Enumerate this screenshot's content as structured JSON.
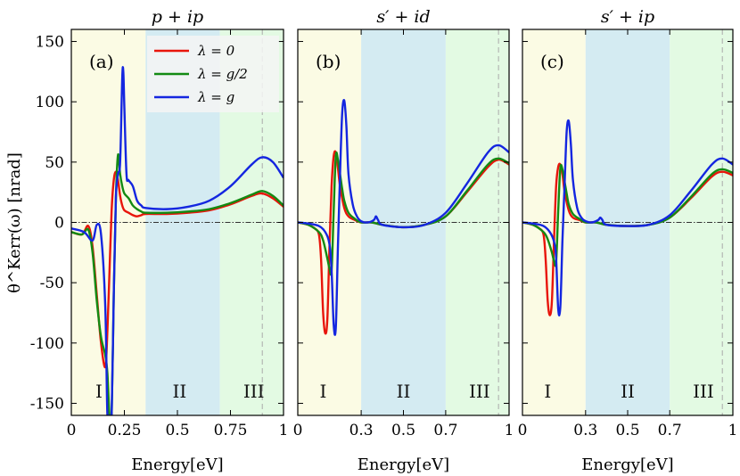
{
  "chart_data": {
    "type": "line",
    "ylabel": "θ^Kerr(ω) [nrad]",
    "ylim": [
      -160,
      160
    ],
    "yticks": [
      -150,
      -100,
      -50,
      0,
      50,
      100,
      150
    ],
    "ytick_labels": [
      "-150",
      "-100",
      "-50",
      "0",
      "50",
      "100",
      "150"
    ],
    "legend": {
      "placement": "top-right of panel (a)",
      "entries": [
        {
          "label": "λ = 0",
          "color": "#e8150b"
        },
        {
          "label": "λ = g/2",
          "color": "#138a13"
        },
        {
          "label": "λ = g",
          "color": "#1426e0"
        }
      ]
    },
    "panels": [
      {
        "letter": "(a)",
        "title": "p + ip",
        "xlabel": "Energy[eV]",
        "xlim": [
          0,
          1
        ],
        "xticks": [
          0,
          0.25,
          0.5,
          0.75,
          1
        ],
        "xtick_labels": [
          "0",
          "0.25",
          "0.5",
          "0.75",
          "1"
        ],
        "regions": [
          {
            "label": "I",
            "from": 0,
            "to": 0.35,
            "color": "#fbfbe4"
          },
          {
            "label": "II",
            "from": 0.35,
            "to": 0.7,
            "color": "#d4ebf2"
          },
          {
            "label": "III",
            "from": 0.7,
            "to": 1,
            "color": "#e3fae3"
          }
        ],
        "dashed_x": 0.9,
        "series": [
          {
            "name": "λ = 0",
            "color": "#e8150b",
            "x": [
              0,
              0.05,
              0.08,
              0.1,
              0.12,
              0.14,
              0.16,
              0.17,
              0.18,
              0.19,
              0.2,
              0.21,
              0.22,
              0.23,
              0.24,
              0.25,
              0.27,
              0.29,
              0.31,
              0.33,
              0.35,
              0.45,
              0.55,
              0.65,
              0.75,
              0.85,
              0.9,
              0.95,
              1.0
            ],
            "y": [
              -8,
              -10,
              -3,
              -20,
              -60,
              -100,
              -120,
              -90,
              -40,
              10,
              35,
              42,
              35,
              22,
              14,
              10,
              8,
              6,
              5,
              6,
              7,
              7,
              8,
              10,
              15,
              22,
              24,
              20,
              13
            ]
          },
          {
            "name": "λ = g/2",
            "color": "#138a13",
            "x": [
              0,
              0.05,
              0.08,
              0.1,
              0.12,
              0.14,
              0.16,
              0.17,
              0.18,
              0.19,
              0.2,
              0.21,
              0.22,
              0.23,
              0.24,
              0.25,
              0.27,
              0.29,
              0.31,
              0.33,
              0.35,
              0.45,
              0.55,
              0.65,
              0.75,
              0.85,
              0.9,
              0.95,
              1.0
            ],
            "y": [
              -8,
              -10,
              -6,
              -25,
              -65,
              -95,
              -110,
              -125,
              -160,
              -160,
              -60,
              20,
              56,
              40,
              30,
              24,
              20,
              14,
              11,
              9,
              8,
              8,
              9,
              11,
              16,
              23,
              26,
              22,
              14
            ]
          },
          {
            "name": "λ = g",
            "color": "#1426e0",
            "x": [
              0,
              0.06,
              0.1,
              0.12,
              0.14,
              0.16,
              0.17,
              0.18,
              0.19,
              0.2,
              0.21,
              0.22,
              0.23,
              0.24,
              0.245,
              0.25,
              0.26,
              0.27,
              0.29,
              0.31,
              0.33,
              0.35,
              0.45,
              0.55,
              0.65,
              0.75,
              0.85,
              0.9,
              0.95,
              1.0
            ],
            "y": [
              -5,
              -8,
              -15,
              -2,
              -10,
              -70,
              -160,
              -160,
              -160,
              -60,
              20,
              40,
              50,
              120,
              125,
              95,
              40,
              35,
              30,
              18,
              14,
              12,
              11,
              13,
              18,
              30,
              48,
              54,
              50,
              37
            ]
          }
        ]
      },
      {
        "letter": "(b)",
        "title": "s′ + id",
        "xlabel": "Energy[eV]",
        "xlim": [
          0,
          1
        ],
        "xticks": [
          0,
          0.3,
          0.5,
          0.7,
          1
        ],
        "xtick_labels": [
          "0",
          "0.3",
          "0.5",
          "0.7",
          "1"
        ],
        "regions": [
          {
            "label": "I",
            "from": 0,
            "to": 0.3,
            "color": "#fbfbe4"
          },
          {
            "label": "II",
            "from": 0.3,
            "to": 0.7,
            "color": "#d4ebf2"
          },
          {
            "label": "III",
            "from": 0.7,
            "to": 1,
            "color": "#e3fae3"
          }
        ],
        "dashed_x": 0.95,
        "series": [
          {
            "name": "λ = 0",
            "color": "#e8150b",
            "x": [
              0,
              0.05,
              0.08,
              0.1,
              0.11,
              0.12,
              0.13,
              0.14,
              0.15,
              0.16,
              0.17,
              0.18,
              0.19,
              0.2,
              0.22,
              0.24,
              0.27,
              0.3,
              0.35,
              0.4,
              0.5,
              0.6,
              0.7,
              0.8,
              0.9,
              0.95,
              1.0
            ],
            "y": [
              0,
              -2,
              -5,
              -10,
              -30,
              -75,
              -92,
              -80,
              -20,
              30,
              55,
              58,
              45,
              30,
              12,
              5,
              2,
              0,
              0,
              -2,
              -4,
              -2,
              5,
              25,
              46,
              52,
              48
            ]
          },
          {
            "name": "λ = g/2",
            "color": "#138a13",
            "x": [
              0,
              0.05,
              0.1,
              0.12,
              0.14,
              0.15,
              0.16,
              0.17,
              0.18,
              0.19,
              0.2,
              0.21,
              0.22,
              0.24,
              0.27,
              0.3,
              0.35,
              0.4,
              0.5,
              0.6,
              0.7,
              0.8,
              0.9,
              0.95,
              1.0
            ],
            "y": [
              0,
              -2,
              -8,
              -15,
              -30,
              -38,
              -40,
              10,
              55,
              52,
              40,
              28,
              18,
              8,
              3,
              0,
              0,
              -2,
              -4,
              -2,
              5,
              26,
              48,
              53,
              49
            ]
          },
          {
            "name": "λ = g",
            "color": "#1426e0",
            "x": [
              0,
              0.05,
              0.1,
              0.13,
              0.15,
              0.16,
              0.17,
              0.18,
              0.19,
              0.2,
              0.21,
              0.22,
              0.23,
              0.24,
              0.26,
              0.28,
              0.3,
              0.33,
              0.36,
              0.37,
              0.38,
              0.4,
              0.5,
              0.6,
              0.7,
              0.8,
              0.9,
              0.95,
              1.0
            ],
            "y": [
              0,
              -1,
              -3,
              -8,
              -18,
              -40,
              -85,
              -87,
              -20,
              40,
              90,
              101,
              80,
              40,
              15,
              5,
              1,
              0,
              2,
              5,
              2,
              -2,
              -4,
              -2,
              8,
              32,
              58,
              64,
              58
            ]
          }
        ]
      },
      {
        "letter": "(c)",
        "title": "s′ + ip",
        "xlabel": "Energy[eV]",
        "xlim": [
          0,
          1
        ],
        "xticks": [
          0,
          0.3,
          0.5,
          0.7,
          1
        ],
        "xtick_labels": [
          "0",
          "0.3",
          "0.5",
          "0.7",
          "1"
        ],
        "regions": [
          {
            "label": "I",
            "from": 0,
            "to": 0.3,
            "color": "#fbfbe4"
          },
          {
            "label": "II",
            "from": 0.3,
            "to": 0.7,
            "color": "#d4ebf2"
          },
          {
            "label": "III",
            "from": 0.7,
            "to": 1,
            "color": "#e3fae3"
          }
        ],
        "dashed_x": 0.95,
        "series": [
          {
            "name": "λ = 0",
            "color": "#e8150b",
            "x": [
              0,
              0.05,
              0.08,
              0.1,
              0.11,
              0.12,
              0.13,
              0.14,
              0.15,
              0.16,
              0.17,
              0.18,
              0.19,
              0.2,
              0.22,
              0.24,
              0.27,
              0.3,
              0.35,
              0.4,
              0.5,
              0.6,
              0.7,
              0.8,
              0.9,
              0.95,
              1.0
            ],
            "y": [
              0,
              -2,
              -5,
              -10,
              -30,
              -65,
              -77,
              -65,
              -15,
              30,
              46,
              48,
              40,
              26,
              10,
              4,
              2,
              0,
              0,
              -2,
              -3,
              -2,
              4,
              20,
              38,
              42,
              39
            ]
          },
          {
            "name": "λ = g/2",
            "color": "#138a13",
            "x": [
              0,
              0.05,
              0.1,
              0.12,
              0.14,
              0.15,
              0.16,
              0.17,
              0.18,
              0.19,
              0.2,
              0.21,
              0.22,
              0.24,
              0.27,
              0.3,
              0.35,
              0.4,
              0.5,
              0.6,
              0.7,
              0.8,
              0.9,
              0.95,
              1.0
            ],
            "y": [
              0,
              -2,
              -8,
              -14,
              -25,
              -32,
              -33,
              10,
              45,
              44,
              34,
              24,
              15,
              7,
              3,
              0,
              0,
              -2,
              -3,
              -2,
              4,
              21,
              40,
              44,
              41
            ]
          },
          {
            "name": "λ = g",
            "color": "#1426e0",
            "x": [
              0,
              0.05,
              0.1,
              0.13,
              0.15,
              0.16,
              0.17,
              0.18,
              0.19,
              0.2,
              0.21,
              0.22,
              0.23,
              0.24,
              0.26,
              0.28,
              0.3,
              0.33,
              0.36,
              0.37,
              0.38,
              0.4,
              0.5,
              0.6,
              0.7,
              0.8,
              0.9,
              0.95,
              1.0
            ],
            "y": [
              0,
              -1,
              -3,
              -8,
              -16,
              -30,
              -72,
              -70,
              -15,
              30,
              75,
              84,
              65,
              35,
              12,
              4,
              1,
              0,
              2,
              4,
              2,
              -2,
              -3,
              -2,
              6,
              26,
              48,
              53,
              48
            ]
          }
        ]
      }
    ]
  }
}
